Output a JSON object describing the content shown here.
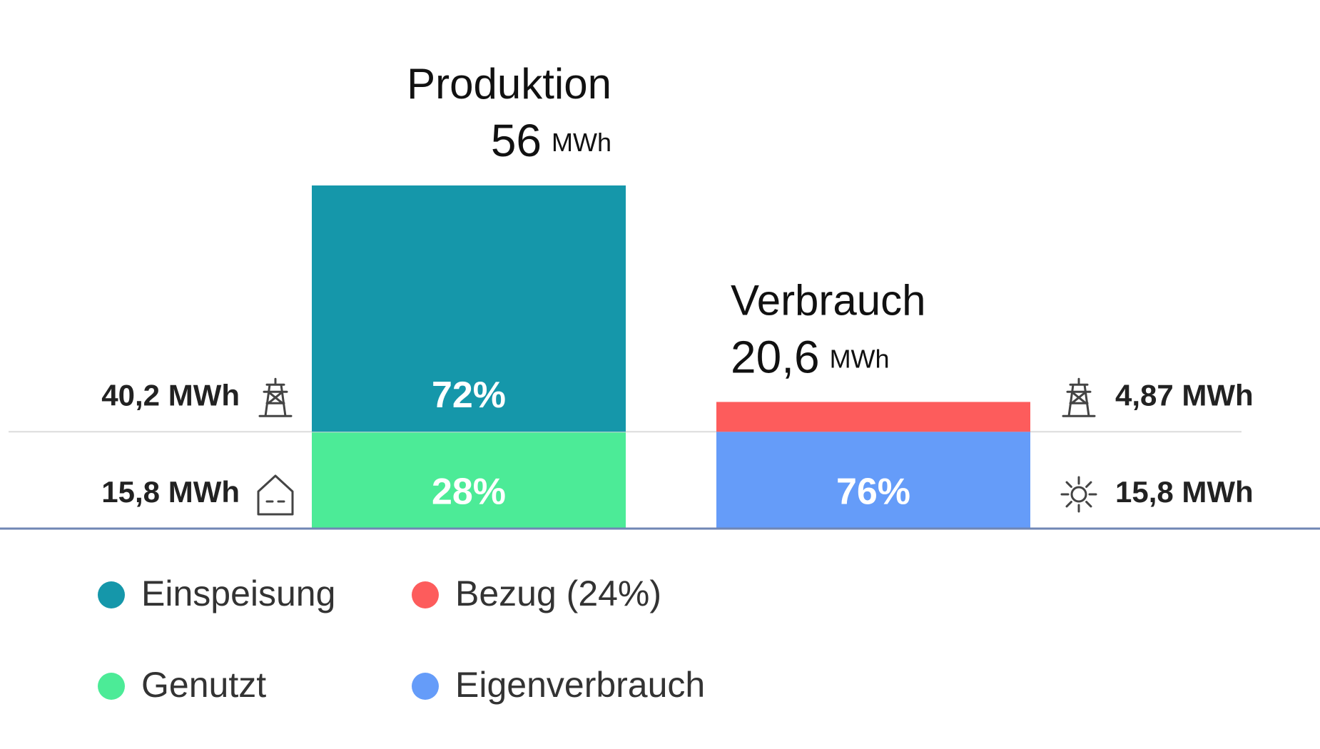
{
  "chart_data": {
    "type": "bar",
    "stacked": true,
    "categories": [
      "Produktion",
      "Verbrauch"
    ],
    "totals": [
      56,
      20.6
    ],
    "total_labels": [
      "56",
      "20,6"
    ],
    "unit": "MWh",
    "series": [
      {
        "name": "Genutzt",
        "color": "#4ceb97",
        "values": [
          15.8,
          null
        ],
        "value_labels": [
          "15,8 MWh",
          null
        ],
        "percent_labels": [
          "28%",
          null
        ]
      },
      {
        "name": "Einspeisung",
        "color": "#1597aa",
        "values": [
          40.2,
          null
        ],
        "value_labels": [
          "40,2 MWh",
          null
        ],
        "percent_labels": [
          "72%",
          null
        ]
      },
      {
        "name": "Eigenverbrauch",
        "color": "#659cf9",
        "values": [
          null,
          15.8
        ],
        "value_labels": [
          null,
          "15,8 MWh"
        ],
        "percent_labels": [
          null,
          "76%"
        ]
      },
      {
        "name": "Bezug (24%)",
        "color": "#fd5c5c",
        "values": [
          null,
          4.87
        ],
        "value_labels": [
          null,
          "4,87 MWh"
        ]
      }
    ]
  }
}
